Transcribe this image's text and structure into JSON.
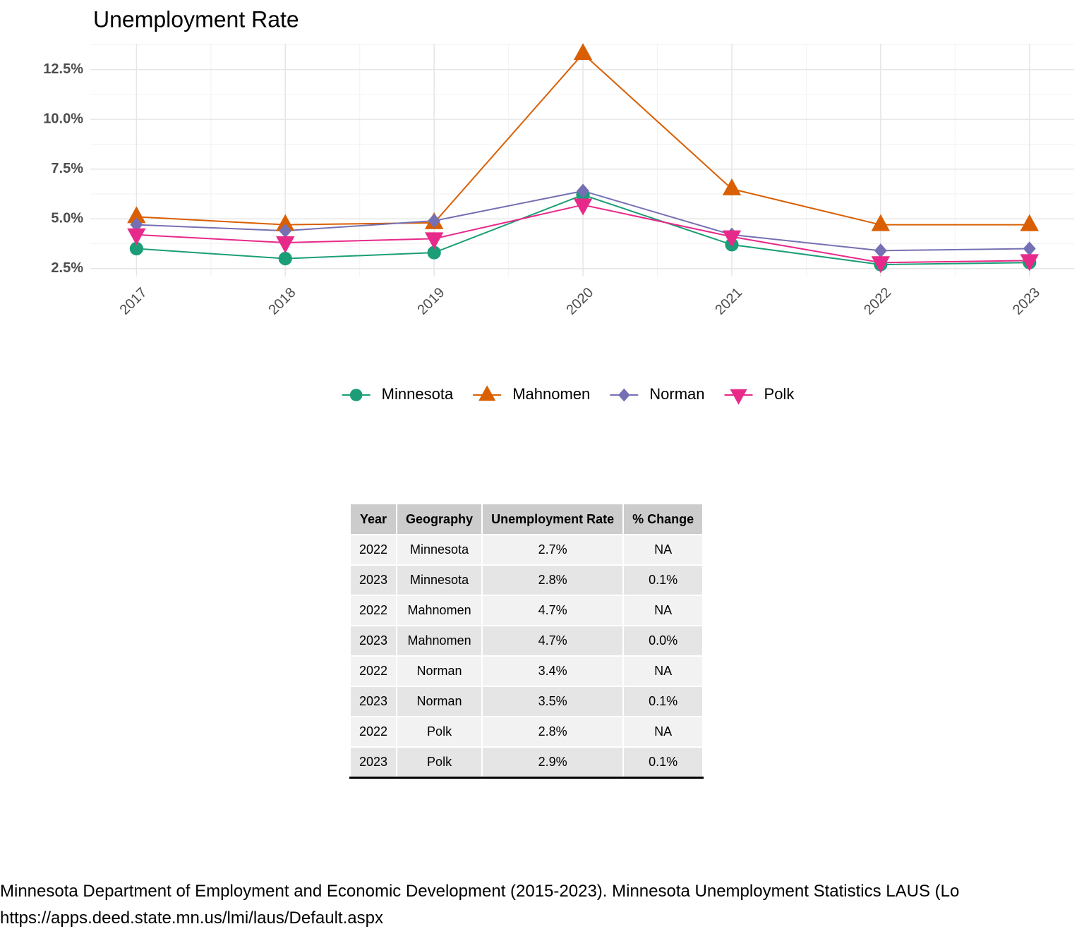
{
  "chart_data": {
    "type": "line",
    "title": "Unemployment Rate",
    "x": [
      2017,
      2018,
      2019,
      2020,
      2021,
      2022,
      2023
    ],
    "xlim": [
      2016.69,
      2023.3
    ],
    "xticks": [
      2017,
      2018,
      2019,
      2020,
      2021,
      2022,
      2023
    ],
    "ylim": [
      2.1,
      13.8
    ],
    "yticks": [
      {
        "value": 2.5,
        "label": "2.5%"
      },
      {
        "value": 5,
        "label": "5.0%"
      },
      {
        "value": 7.5,
        "label": "7.5%"
      },
      {
        "value": 10,
        "label": "10.0%"
      },
      {
        "value": 12.5,
        "label": "12.5%"
      }
    ],
    "grid": true,
    "legend": "bottom",
    "series": [
      {
        "name": "Minnesota",
        "color": "#1b9e77",
        "marker": "circle",
        "values": [
          3.5,
          3.0,
          3.3,
          6.2,
          3.7,
          2.7,
          2.8
        ]
      },
      {
        "name": "Mahnomen",
        "color": "#d95f02",
        "marker": "triangle-up",
        "values": [
          5.1,
          4.7,
          4.8,
          13.3,
          6.5,
          4.7,
          4.7
        ]
      },
      {
        "name": "Norman",
        "color": "#7570b3",
        "marker": "diamond",
        "values": [
          4.7,
          4.4,
          4.9,
          6.4,
          4.2,
          3.4,
          3.5
        ]
      },
      {
        "name": "Polk",
        "color": "#e7298a",
        "marker": "triangle-down",
        "values": [
          4.2,
          3.8,
          4.0,
          5.7,
          4.1,
          2.8,
          2.9
        ]
      }
    ]
  },
  "table": {
    "header": [
      "Year",
      "Geography",
      "Unemployment Rate",
      "% Change"
    ],
    "rows": [
      [
        "2022",
        "Minnesota",
        "2.7%",
        "NA"
      ],
      [
        "2023",
        "Minnesota",
        "2.8%",
        "0.1%"
      ],
      [
        "2022",
        "Mahnomen",
        "4.7%",
        "NA"
      ],
      [
        "2023",
        "Mahnomen",
        "4.7%",
        "0.0%"
      ],
      [
        "2022",
        "Norman",
        "3.4%",
        "NA"
      ],
      [
        "2023",
        "Norman",
        "3.5%",
        "0.1%"
      ],
      [
        "2022",
        "Polk",
        "2.8%",
        "NA"
      ],
      [
        "2023",
        "Polk",
        "2.9%",
        "0.1%"
      ]
    ]
  },
  "source": [
    "Minnesota Department of Employment and Economic Development (2015-2023). Minnesota Unemployment Statistics LAUS (Lo",
    "https://apps.deed.state.mn.us/lmi/laus/Default.aspx"
  ]
}
